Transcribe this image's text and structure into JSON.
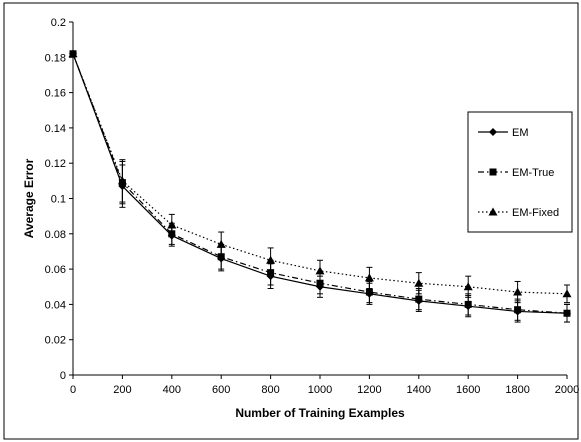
{
  "chart_data": {
    "type": "line",
    "title": "",
    "xlabel": "Number of Training Examples",
    "ylabel": "Average Error",
    "xlim": [
      0,
      2000
    ],
    "ylim": [
      0,
      0.2
    ],
    "xticks": [
      0,
      200,
      400,
      600,
      800,
      1000,
      1200,
      1400,
      1600,
      1800,
      2000
    ],
    "yticks": [
      0,
      0.02,
      0.04,
      0.06,
      0.08,
      0.1,
      0.12,
      0.14,
      0.16,
      0.18,
      0.2
    ],
    "xtick_labels": [
      "0",
      "200",
      "400",
      "600",
      "800",
      "1000",
      "1200",
      "1400",
      "1600",
      "1800",
      "2000"
    ],
    "ytick_labels": [
      "0",
      "0.02",
      "0.04",
      "0.06",
      "0.08",
      "0.1",
      "0.12",
      "0.14",
      "0.16",
      "0.18",
      "0.2"
    ],
    "grid": false,
    "legend_position": "right",
    "x": [
      0,
      200,
      400,
      600,
      800,
      1000,
      1200,
      1400,
      1600,
      1800,
      2000
    ],
    "series": [
      {
        "name": "EM",
        "style": "solid",
        "marker": "diamond",
        "values": [
          0.182,
          0.107,
          0.079,
          0.066,
          0.056,
          0.05,
          0.046,
          0.042,
          0.039,
          0.036,
          0.035
        ],
        "error": [
          0,
          0.012,
          0.006,
          0.007,
          0.007,
          0.006,
          0.006,
          0.006,
          0.006,
          0.006,
          0.005
        ]
      },
      {
        "name": "EM-True",
        "style": "dashdot",
        "marker": "square",
        "values": [
          0.182,
          0.109,
          0.08,
          0.067,
          0.058,
          0.052,
          0.047,
          0.043,
          0.04,
          0.037,
          0.035
        ],
        "error": [
          0,
          0.012,
          0.006,
          0.007,
          0.007,
          0.006,
          0.006,
          0.006,
          0.006,
          0.006,
          0.005
        ]
      },
      {
        "name": "EM-Fixed",
        "style": "dotted",
        "marker": "triangle",
        "values": [
          0.182,
          0.11,
          0.085,
          0.074,
          0.065,
          0.059,
          0.055,
          0.052,
          0.05,
          0.047,
          0.046
        ],
        "error": [
          0,
          0.012,
          0.006,
          0.007,
          0.007,
          0.006,
          0.006,
          0.006,
          0.006,
          0.006,
          0.005
        ]
      }
    ]
  }
}
